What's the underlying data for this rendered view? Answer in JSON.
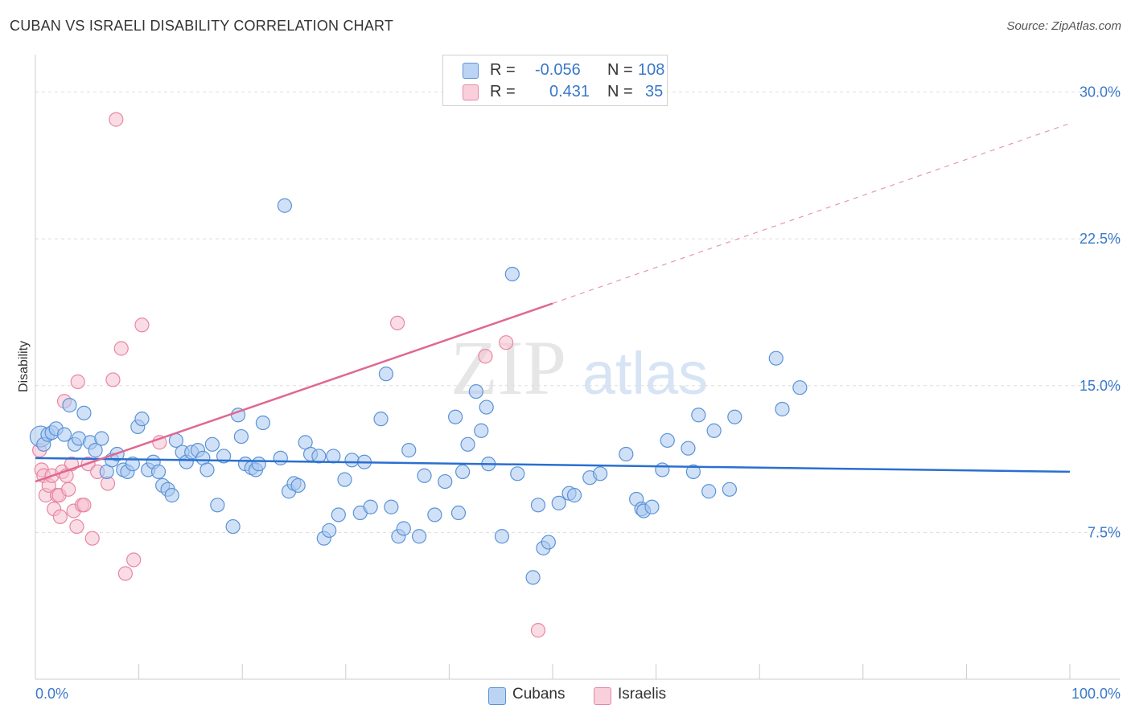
{
  "header": {
    "title": "CUBAN VS ISRAELI DISABILITY CORRELATION CHART",
    "source": "Source: ZipAtlas.com"
  },
  "legend": {
    "rows": [
      {
        "r_label": "R =",
        "r_value": "-0.056",
        "n_label": "N =",
        "n_value": "108"
      },
      {
        "r_label": "R =",
        "r_value": "0.431",
        "n_label": "N =",
        "n_value": "35"
      }
    ]
  },
  "bottom_legend": {
    "items": [
      {
        "label": "Cubans"
      },
      {
        "label": "Israelis"
      }
    ]
  },
  "watermark": {
    "zip": "ZIP",
    "atlas": "atlas"
  },
  "colors": {
    "cubans_fill": "#a9c8f0",
    "cubans_stroke": "#5b93d6",
    "cubans_line": "#2a6fd0",
    "israelis_fill": "#f6bfd0",
    "israelis_stroke": "#e886a6",
    "israelis_line": "#e06890",
    "tick_label": "#3a78c9",
    "grid": "#dddddd"
  },
  "chart_data": {
    "type": "scatter",
    "title": "CUBAN VS ISRAELI DISABILITY CORRELATION CHART",
    "xlabel": "",
    "ylabel": "Disability",
    "xlim": [
      0,
      100
    ],
    "ylim": [
      0,
      31.5
    ],
    "x_tick_labels": [
      "0.0%",
      "100.0%"
    ],
    "y_ticks": [
      7.5,
      15.0,
      22.5,
      30.0
    ],
    "y_tick_labels": [
      "7.5%",
      "15.0%",
      "22.5%",
      "30.0%"
    ],
    "grid": true,
    "legend_position": "top-center",
    "series": [
      {
        "name": "Cubans",
        "r": -0.056,
        "n": 108,
        "trend": {
          "x0": 0,
          "y0": 11.3,
          "x1": 100,
          "y1": 10.6
        },
        "points": [
          [
            0.5,
            12.4
          ],
          [
            0.8,
            12.0
          ],
          [
            1.2,
            12.5
          ],
          [
            1.6,
            12.6
          ],
          [
            2.0,
            12.8
          ],
          [
            2.8,
            12.5
          ],
          [
            3.3,
            14.0
          ],
          [
            3.8,
            12.0
          ],
          [
            4.2,
            12.3
          ],
          [
            4.7,
            13.6
          ],
          [
            5.3,
            12.1
          ],
          [
            5.8,
            11.7
          ],
          [
            6.4,
            12.3
          ],
          [
            6.9,
            10.6
          ],
          [
            7.4,
            11.2
          ],
          [
            7.9,
            11.5
          ],
          [
            8.5,
            10.7
          ],
          [
            8.9,
            10.6
          ],
          [
            9.4,
            11.0
          ],
          [
            9.9,
            12.9
          ],
          [
            10.3,
            13.3
          ],
          [
            10.9,
            10.7
          ],
          [
            11.4,
            11.1
          ],
          [
            11.9,
            10.6
          ],
          [
            12.3,
            9.9
          ],
          [
            12.8,
            9.7
          ],
          [
            13.2,
            9.4
          ],
          [
            13.6,
            12.2
          ],
          [
            14.2,
            11.6
          ],
          [
            14.6,
            11.1
          ],
          [
            15.1,
            11.6
          ],
          [
            15.7,
            11.7
          ],
          [
            16.2,
            11.3
          ],
          [
            16.6,
            10.7
          ],
          [
            17.1,
            12.0
          ],
          [
            17.6,
            8.9
          ],
          [
            18.2,
            11.4
          ],
          [
            19.1,
            7.8
          ],
          [
            19.6,
            13.5
          ],
          [
            19.9,
            12.4
          ],
          [
            20.3,
            11.0
          ],
          [
            20.9,
            10.8
          ],
          [
            21.3,
            10.7
          ],
          [
            21.6,
            11.0
          ],
          [
            22.0,
            13.1
          ],
          [
            23.7,
            11.3
          ],
          [
            24.1,
            24.2
          ],
          [
            24.5,
            9.6
          ],
          [
            25.0,
            10.0
          ],
          [
            25.4,
            9.9
          ],
          [
            26.1,
            12.1
          ],
          [
            26.6,
            11.5
          ],
          [
            27.4,
            11.4
          ],
          [
            27.9,
            7.2
          ],
          [
            28.4,
            7.6
          ],
          [
            28.8,
            11.4
          ],
          [
            29.3,
            8.4
          ],
          [
            29.9,
            10.2
          ],
          [
            30.6,
            11.2
          ],
          [
            31.4,
            8.5
          ],
          [
            31.8,
            11.1
          ],
          [
            32.4,
            8.8
          ],
          [
            33.4,
            13.3
          ],
          [
            33.9,
            15.6
          ],
          [
            34.4,
            8.8
          ],
          [
            35.1,
            7.3
          ],
          [
            35.6,
            7.7
          ],
          [
            36.1,
            11.7
          ],
          [
            37.1,
            7.3
          ],
          [
            37.6,
            10.4
          ],
          [
            38.6,
            8.4
          ],
          [
            39.6,
            10.1
          ],
          [
            40.6,
            13.4
          ],
          [
            40.9,
            8.5
          ],
          [
            41.3,
            10.6
          ],
          [
            41.8,
            12.0
          ],
          [
            42.6,
            14.7
          ],
          [
            43.1,
            12.7
          ],
          [
            43.6,
            13.9
          ],
          [
            43.8,
            11.0
          ],
          [
            45.1,
            7.3
          ],
          [
            46.1,
            20.7
          ],
          [
            46.6,
            10.5
          ],
          [
            48.1,
            5.2
          ],
          [
            48.6,
            8.9
          ],
          [
            49.1,
            6.7
          ],
          [
            49.6,
            7.0
          ],
          [
            50.6,
            9.0
          ],
          [
            51.6,
            9.5
          ],
          [
            52.1,
            9.4
          ],
          [
            53.6,
            10.3
          ],
          [
            54.6,
            10.5
          ],
          [
            57.1,
            11.5
          ],
          [
            58.1,
            9.2
          ],
          [
            58.6,
            8.7
          ],
          [
            58.8,
            8.6
          ],
          [
            59.6,
            8.8
          ],
          [
            60.6,
            10.7
          ],
          [
            61.1,
            12.2
          ],
          [
            63.1,
            11.8
          ],
          [
            63.6,
            10.6
          ],
          [
            64.1,
            13.5
          ],
          [
            65.1,
            9.6
          ],
          [
            65.6,
            12.7
          ],
          [
            67.1,
            9.7
          ],
          [
            67.6,
            13.4
          ],
          [
            71.6,
            16.4
          ],
          [
            72.2,
            13.8
          ],
          [
            73.9,
            14.9
          ]
        ]
      },
      {
        "name": "Israelis",
        "r": 0.431,
        "n": 35,
        "trend": {
          "x0": 0,
          "y0": 10.1,
          "x1": 50,
          "y1": 19.2,
          "dash_x1": 100,
          "dash_y1": 28.4
        },
        "points": [
          [
            0.4,
            11.7
          ],
          [
            0.6,
            10.7
          ],
          [
            0.8,
            10.4
          ],
          [
            1.0,
            9.4
          ],
          [
            1.3,
            9.9
          ],
          [
            1.6,
            10.4
          ],
          [
            1.8,
            8.7
          ],
          [
            2.1,
            9.4
          ],
          [
            2.3,
            9.4
          ],
          [
            2.4,
            8.3
          ],
          [
            2.6,
            10.6
          ],
          [
            2.8,
            14.2
          ],
          [
            3.0,
            10.4
          ],
          [
            3.2,
            9.7
          ],
          [
            3.5,
            11.0
          ],
          [
            3.7,
            8.6
          ],
          [
            4.0,
            7.8
          ],
          [
            4.1,
            15.2
          ],
          [
            4.5,
            8.9
          ],
          [
            4.7,
            8.9
          ],
          [
            5.1,
            11.0
          ],
          [
            5.5,
            7.2
          ],
          [
            6.0,
            10.6
          ],
          [
            7.0,
            10.0
          ],
          [
            7.5,
            15.3
          ],
          [
            7.8,
            28.6
          ],
          [
            8.3,
            16.9
          ],
          [
            8.7,
            5.4
          ],
          [
            9.5,
            6.1
          ],
          [
            10.3,
            18.1
          ],
          [
            12.0,
            12.1
          ],
          [
            35.0,
            18.2
          ],
          [
            43.5,
            16.5
          ],
          [
            45.5,
            17.2
          ],
          [
            48.6,
            2.5
          ]
        ]
      }
    ]
  }
}
